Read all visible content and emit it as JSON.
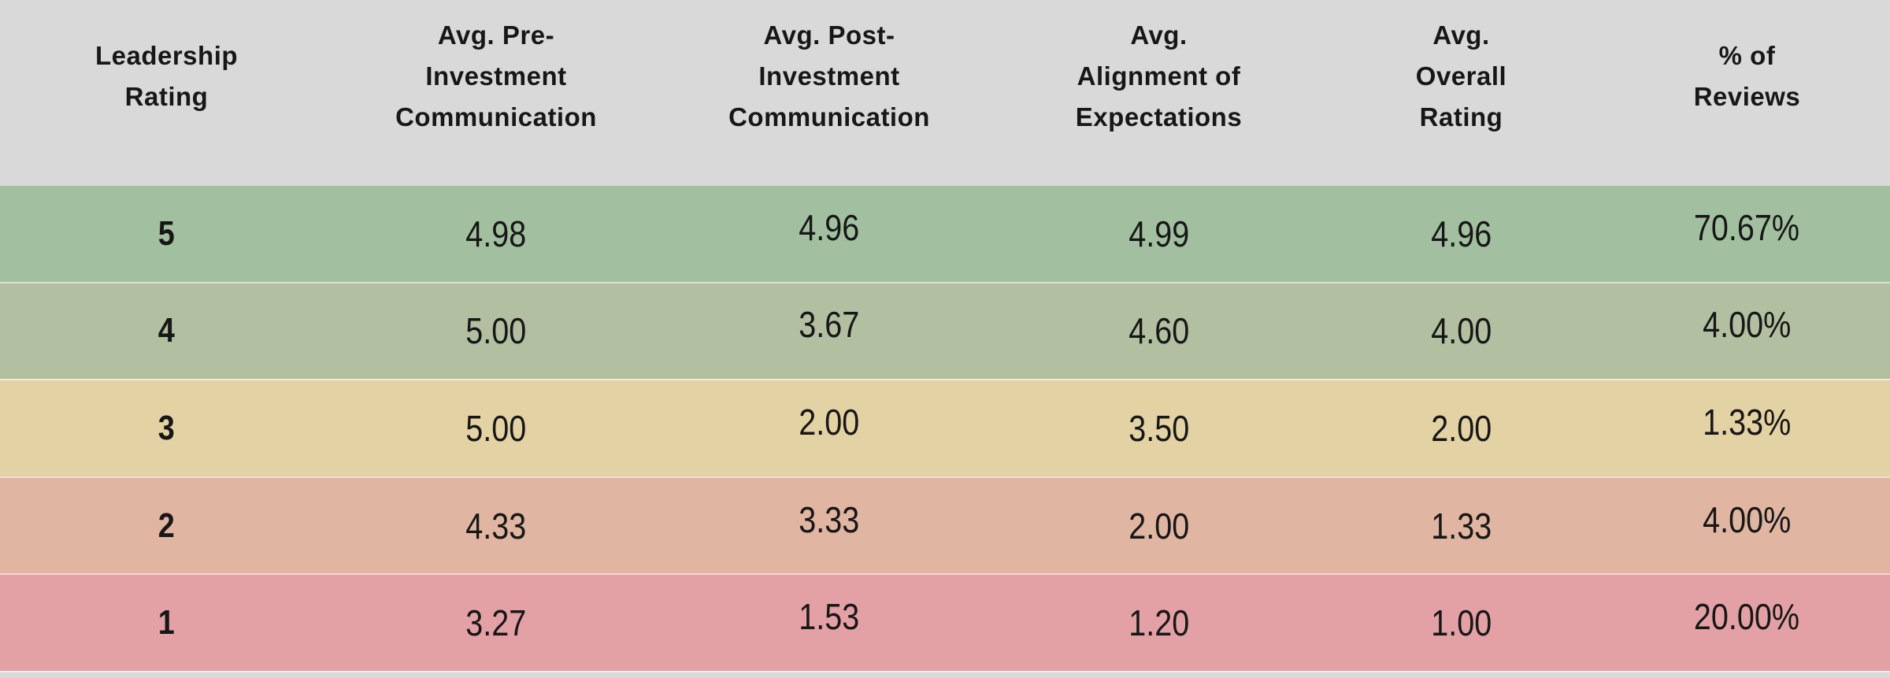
{
  "colors": {
    "header_bg": "#d9d9d9",
    "footer_bg": "#d9d9d9",
    "text": "#171717",
    "row_divider": "rgba(255,255,255,0.55)",
    "row_colors": [
      "#a2c0a0",
      "#b2bfa0",
      "#e3d2a3",
      "#e0b5a1",
      "#e3a1a5"
    ]
  },
  "table": {
    "header": [
      {
        "label": "Leadership Rating",
        "lines": [
          "Leadership",
          "Rating"
        ]
      },
      {
        "label": "Avg. Pre-Investment Communication",
        "lines": [
          "Avg. Pre-",
          "Investment",
          "Communication"
        ]
      },
      {
        "label": "Avg. Post-Investment Communication",
        "lines": [
          "Avg. Post-",
          "Investment",
          "Communication"
        ]
      },
      {
        "label": "Avg. Alignment of Expectations",
        "lines": [
          "Avg.",
          "Alignment of",
          "Expectations"
        ]
      },
      {
        "label": "Avg. Overall Rating",
        "lines": [
          "Avg.",
          "Overall",
          "Rating"
        ]
      },
      {
        "label": "% of Reviews",
        "lines": [
          "% of",
          "Reviews"
        ]
      }
    ],
    "rows": [
      {
        "rating": "5",
        "values": [
          "4.98",
          "4.96",
          "4.99",
          "4.96",
          "70.67%"
        ]
      },
      {
        "rating": "4",
        "values": [
          "5.00",
          "3.67",
          "4.60",
          "4.00",
          "4.00%"
        ]
      },
      {
        "rating": "3",
        "values": [
          "5.00",
          "2.00",
          "3.50",
          "2.00",
          "1.33%"
        ]
      },
      {
        "rating": "2",
        "values": [
          "4.33",
          "3.33",
          "2.00",
          "1.33",
          "4.00%"
        ]
      },
      {
        "rating": "1",
        "values": [
          "3.27",
          "1.53",
          "1.20",
          "1.00",
          "20.00%"
        ]
      }
    ]
  },
  "chart_data": {
    "type": "table",
    "columns": [
      "Leadership Rating",
      "Avg. Pre-Investment Communication",
      "Avg. Post-Investment Communication",
      "Avg. Alignment of Expectations",
      "Avg. Overall Rating",
      "% of Reviews"
    ],
    "rows": [
      [
        "5",
        "4.98",
        "4.96",
        "4.99",
        "4.96",
        "70.67%"
      ],
      [
        "4",
        "5.00",
        "3.67",
        "4.60",
        "4.00",
        "4.00%"
      ],
      [
        "3",
        "5.00",
        "2.00",
        "3.50",
        "2.00",
        "1.33%"
      ],
      [
        "2",
        "4.33",
        "3.33",
        "2.00",
        "1.33",
        "4.00%"
      ],
      [
        "1",
        "3.27",
        "1.53",
        "1.20",
        "1.00",
        "20.00%"
      ]
    ],
    "layout_hints": {
      "row_tint_by_rating": {
        "5": "green",
        "4": "olive-green",
        "3": "tan",
        "2": "salmon",
        "1": "pink-red"
      },
      "header_background": "light-gray",
      "gridlines": "thin white horizontal dividers between rows"
    }
  }
}
